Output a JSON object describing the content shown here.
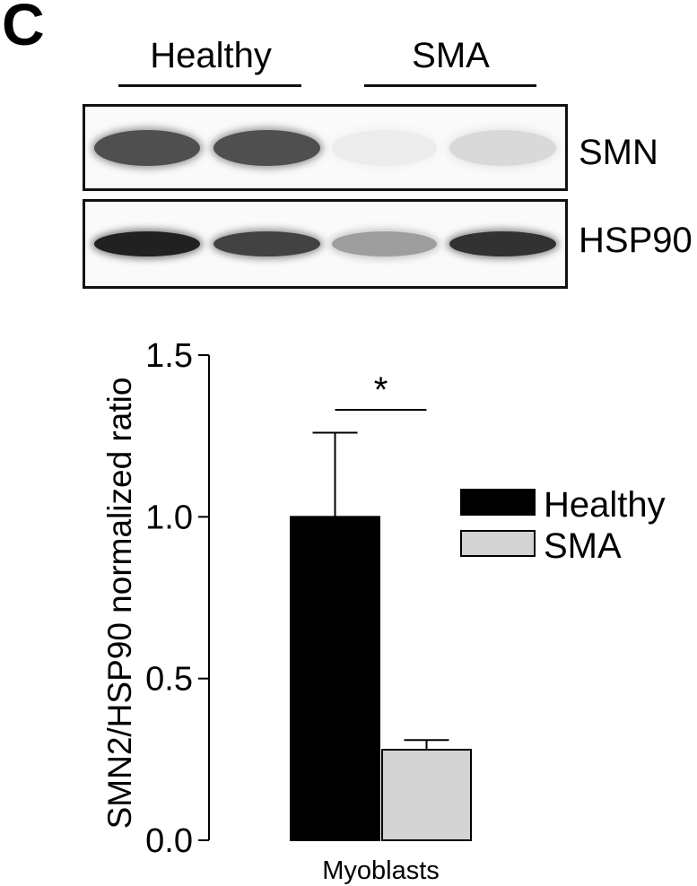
{
  "panel": {
    "letter": "C"
  },
  "blot": {
    "groups": [
      "Healthy",
      "SMA"
    ],
    "rows": [
      {
        "label": "SMN",
        "band_intensity": [
          0.72,
          0.72,
          0.04,
          0.12
        ]
      },
      {
        "label": "HSP90",
        "band_intensity": [
          0.92,
          0.78,
          0.38,
          0.85
        ]
      }
    ]
  },
  "colors": {
    "healthy": "#000000",
    "sma": "#d3d3d3",
    "axis": "#000000"
  },
  "chart_data": {
    "type": "bar",
    "categories": [
      "Myoblasts"
    ],
    "series": [
      {
        "name": "Healthy",
        "values": [
          1.0
        ],
        "error": [
          0.26
        ]
      },
      {
        "name": "SMA",
        "values": [
          0.28
        ],
        "error": [
          0.03
        ]
      }
    ],
    "xlabel": "Myoblasts",
    "ylabel": "SMN2/HSP90 normalized ratio",
    "ylim": [
      0,
      1.5
    ],
    "yticks": [
      "0.0",
      "0.5",
      "1.0",
      "1.5"
    ],
    "significance": "*",
    "legend": "right",
    "grid": false
  }
}
